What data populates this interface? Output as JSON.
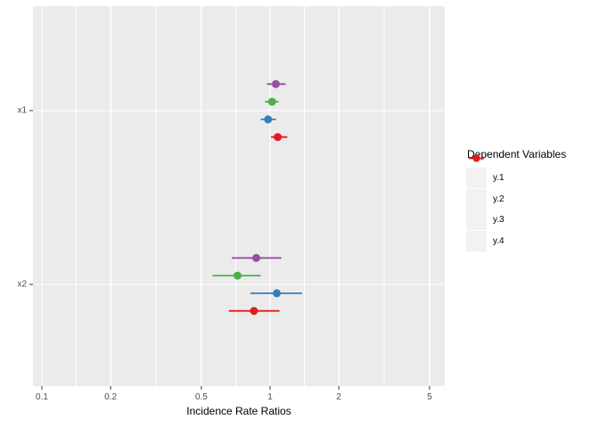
{
  "chart_data": {
    "type": "forest",
    "xlabel": "Incidence Rate Ratios",
    "legend_title": "Dependent Variables",
    "x_scale": "log10",
    "x_ticks": [
      0.1,
      0.2,
      0.5,
      1,
      2,
      5
    ],
    "x_tick_labels": [
      "0.1",
      "0.2",
      "0.5",
      "1",
      "2",
      "5"
    ],
    "x_range": [
      0.091,
      5.85
    ],
    "grid": "on",
    "legend_position": "right",
    "categories": [
      "x1",
      "x2"
    ],
    "series": [
      {
        "name": "y.1",
        "color": "#984EA3",
        "points": [
          {
            "category": "x1",
            "estimate": 1.06,
            "ci_low": 0.97,
            "ci_high": 1.17
          },
          {
            "category": "x2",
            "estimate": 0.87,
            "ci_low": 0.68,
            "ci_high": 1.12
          }
        ]
      },
      {
        "name": "y.2",
        "color": "#4DAF4A",
        "points": [
          {
            "category": "x1",
            "estimate": 1.02,
            "ci_low": 0.95,
            "ci_high": 1.09
          },
          {
            "category": "x2",
            "estimate": 0.72,
            "ci_low": 0.56,
            "ci_high": 0.91
          }
        ]
      },
      {
        "name": "y.3",
        "color": "#377EB8",
        "points": [
          {
            "category": "x1",
            "estimate": 0.98,
            "ci_low": 0.91,
            "ci_high": 1.06
          },
          {
            "category": "x2",
            "estimate": 1.07,
            "ci_low": 0.82,
            "ci_high": 1.38
          }
        ]
      },
      {
        "name": "y.4",
        "color": "#E41A1C",
        "points": [
          {
            "category": "x1",
            "estimate": 1.08,
            "ci_low": 1.01,
            "ci_high": 1.19
          },
          {
            "category": "x2",
            "estimate": 0.85,
            "ci_low": 0.66,
            "ci_high": 1.1
          }
        ]
      }
    ],
    "colors": {
      "panel_background": "#EBEBEB",
      "gridline": "#FFFFFF",
      "legend_key_background": "#F2F2F2",
      "tick_label": "#4D4D4D",
      "tick_mark": "#333333",
      "axis_title": "#000000"
    }
  }
}
